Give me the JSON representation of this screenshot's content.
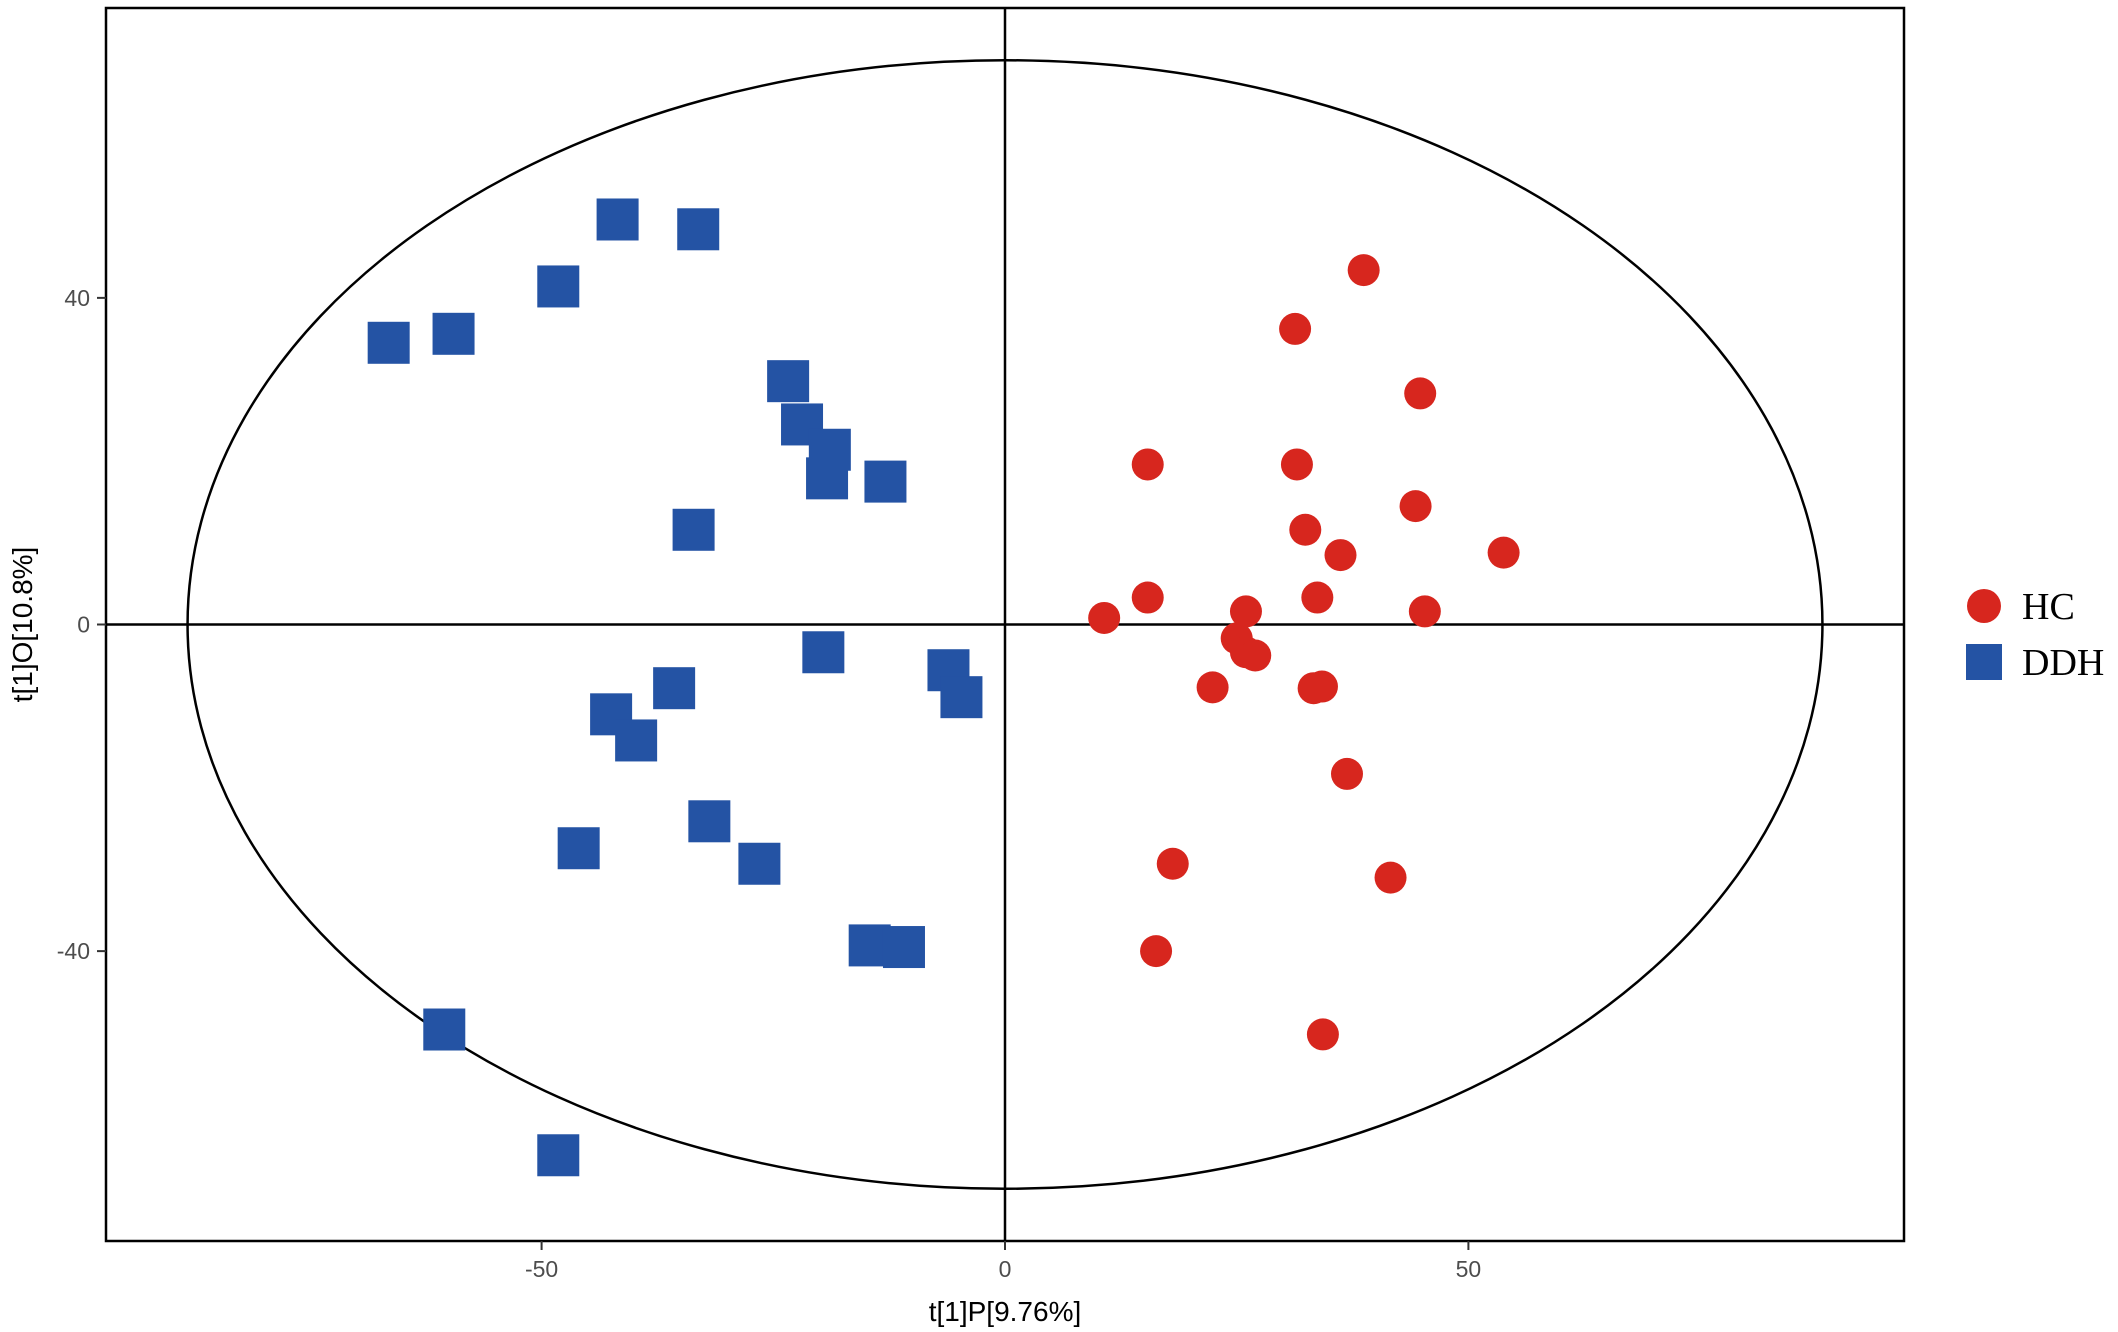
{
  "chart_data": {
    "type": "scatter",
    "title": "",
    "xlabel": "t[1]P[9.76%]",
    "ylabel": "t[1]O[10.8%]",
    "xlim": [
      -97,
      97
    ],
    "ylim": [
      -75.5,
      75.5
    ],
    "xticks": [
      -50,
      0,
      50
    ],
    "yticks": [
      -40,
      0,
      40
    ],
    "grid": false,
    "reference_lines": {
      "x": 0,
      "y": 0
    },
    "ellipse": {
      "cx": 0,
      "cy": 0,
      "rx": 88.2,
      "ry": 69.1
    },
    "legend_position": "right",
    "series": [
      {
        "name": "HC",
        "marker": "circle",
        "color": "#d7261e",
        "points": [
          [
            10.7,
            0.8
          ],
          [
            15.4,
            3.3
          ],
          [
            15.4,
            19.6
          ],
          [
            16.3,
            -40.0
          ],
          [
            18.1,
            -29.3
          ],
          [
            22.4,
            -7.7
          ],
          [
            25.0,
            -1.7
          ],
          [
            26.0,
            1.6
          ],
          [
            26.0,
            -3.4
          ],
          [
            27.0,
            -3.8
          ],
          [
            31.3,
            36.2
          ],
          [
            31.5,
            19.6
          ],
          [
            32.4,
            11.6
          ],
          [
            33.3,
            -7.8
          ],
          [
            33.7,
            3.3
          ],
          [
            34.2,
            -7.6
          ],
          [
            34.3,
            -50.2
          ],
          [
            36.2,
            8.5
          ],
          [
            36.9,
            -18.3
          ],
          [
            38.7,
            43.4
          ],
          [
            41.6,
            -31.0
          ],
          [
            44.3,
            14.5
          ],
          [
            44.8,
            28.3
          ],
          [
            45.3,
            1.6
          ],
          [
            53.8,
            8.8
          ]
        ]
      },
      {
        "name": "DDH",
        "marker": "square",
        "color": "#2453a4",
        "points": [
          [
            -66.5,
            34.5
          ],
          [
            -59.5,
            35.6
          ],
          [
            -60.5,
            -49.6
          ],
          [
            -48.2,
            41.4
          ],
          [
            -48.2,
            -65.0
          ],
          [
            -46.0,
            -27.4
          ],
          [
            -41.8,
            49.6
          ],
          [
            -42.5,
            -11.0
          ],
          [
            -39.8,
            -14.2
          ],
          [
            -35.7,
            -7.8
          ],
          [
            -33.1,
            48.4
          ],
          [
            -33.6,
            11.6
          ],
          [
            -31.9,
            -24.1
          ],
          [
            -26.5,
            -29.3
          ],
          [
            -23.4,
            29.8
          ],
          [
            -21.9,
            24.5
          ],
          [
            -19.6,
            -3.4
          ],
          [
            -19.2,
            17.9
          ],
          [
            -18.9,
            21.4
          ],
          [
            -12.9,
            17.5
          ],
          [
            -14.6,
            -39.3
          ],
          [
            -10.9,
            -39.5
          ],
          [
            -6.1,
            -5.6
          ],
          [
            -4.7,
            -8.9
          ]
        ]
      }
    ]
  }
}
